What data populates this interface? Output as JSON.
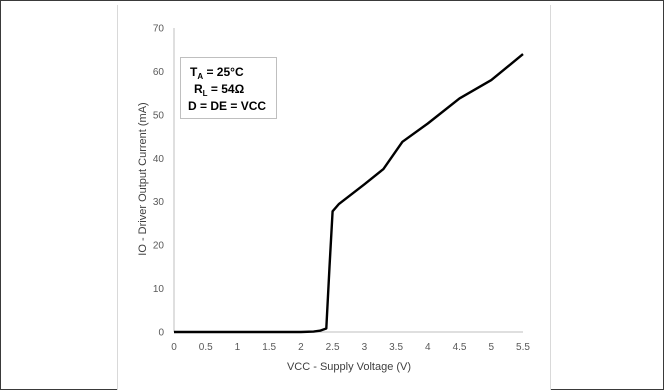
{
  "chart_data": {
    "type": "line",
    "title": "",
    "xlabel": "VCC - Supply Voltage (V)",
    "ylabel": "IO - Driver Output Current (mA)",
    "xlim": [
      0,
      5.5
    ],
    "ylim": [
      0,
      70
    ],
    "x_ticks": [
      "0",
      "0.5",
      "1",
      "1.5",
      "2",
      "2.5",
      "3",
      "3.5",
      "4",
      "4.5",
      "5",
      "5.5"
    ],
    "y_ticks": [
      "0",
      "10",
      "20",
      "30",
      "40",
      "50",
      "60",
      "70"
    ],
    "grid": false,
    "series": [
      {
        "x": [
          0,
          0.5,
          1,
          1.5,
          2,
          2.2,
          2.3,
          2.4,
          2.45,
          2.5,
          2.6,
          3.0,
          3.3,
          3.6,
          4.0,
          4.5,
          5.0,
          5.5
        ],
        "y": [
          0,
          0,
          0,
          0,
          0,
          0.1,
          0.3,
          0.8,
          15,
          27.8,
          29.5,
          34,
          37.5,
          43.8,
          48,
          53.8,
          58,
          64
        ],
        "color": "#000000"
      }
    ],
    "annotations": {
      "temp_label": "T",
      "temp_sub": "A",
      "temp_value": " = 25°C",
      "load_label": "R",
      "load_sub": "L",
      "load_value": " = 54Ω",
      "drive_text": "D = DE = VCC"
    }
  }
}
